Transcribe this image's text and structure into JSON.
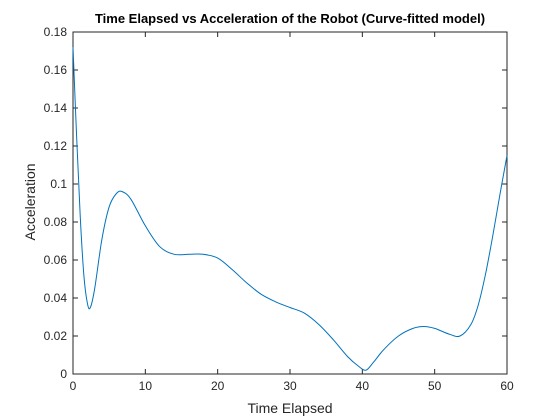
{
  "chart_data": {
    "type": "line",
    "title": "Time Elapsed vs Acceleration of the Robot (Curve-fitted model)",
    "xlabel": "Time Elapsed",
    "ylabel": "Acceleration",
    "xlim": [
      0,
      60
    ],
    "ylim": [
      0,
      0.18
    ],
    "xticks": [
      0,
      10,
      20,
      30,
      40,
      50,
      60
    ],
    "yticks": [
      0,
      0.02,
      0.04,
      0.06,
      0.08,
      0.1,
      0.12,
      0.14,
      0.16,
      0.18
    ],
    "xtick_labels": [
      "0",
      "10",
      "20",
      "30",
      "40",
      "50",
      "60"
    ],
    "ytick_labels": [
      "0",
      "0.02",
      "0.04",
      "0.06",
      "0.08",
      "0.1",
      "0.12",
      "0.14",
      "0.16",
      "0.18"
    ],
    "grid": false,
    "series": [
      {
        "color": "#0072BD",
        "x": [
          0,
          0.5,
          1,
          1.5,
          2,
          2.4,
          3,
          4,
          5,
          6,
          6.8,
          8,
          10,
          12,
          14,
          16,
          18,
          20,
          22,
          24,
          26,
          28,
          30,
          32,
          34,
          36,
          38,
          39.5,
          40.5,
          41.5,
          43,
          45,
          47,
          48.5,
          50,
          52,
          53.5,
          55,
          56,
          57,
          58,
          59,
          60
        ],
        "y": [
          0.172,
          0.125,
          0.083,
          0.052,
          0.037,
          0.035,
          0.045,
          0.071,
          0.088,
          0.095,
          0.096,
          0.092,
          0.078,
          0.067,
          0.063,
          0.063,
          0.063,
          0.061,
          0.055,
          0.048,
          0.042,
          0.038,
          0.035,
          0.032,
          0.026,
          0.018,
          0.009,
          0.004,
          0.002,
          0.006,
          0.013,
          0.02,
          0.024,
          0.025,
          0.024,
          0.021,
          0.02,
          0.026,
          0.036,
          0.052,
          0.072,
          0.094,
          0.115
        ]
      }
    ]
  }
}
